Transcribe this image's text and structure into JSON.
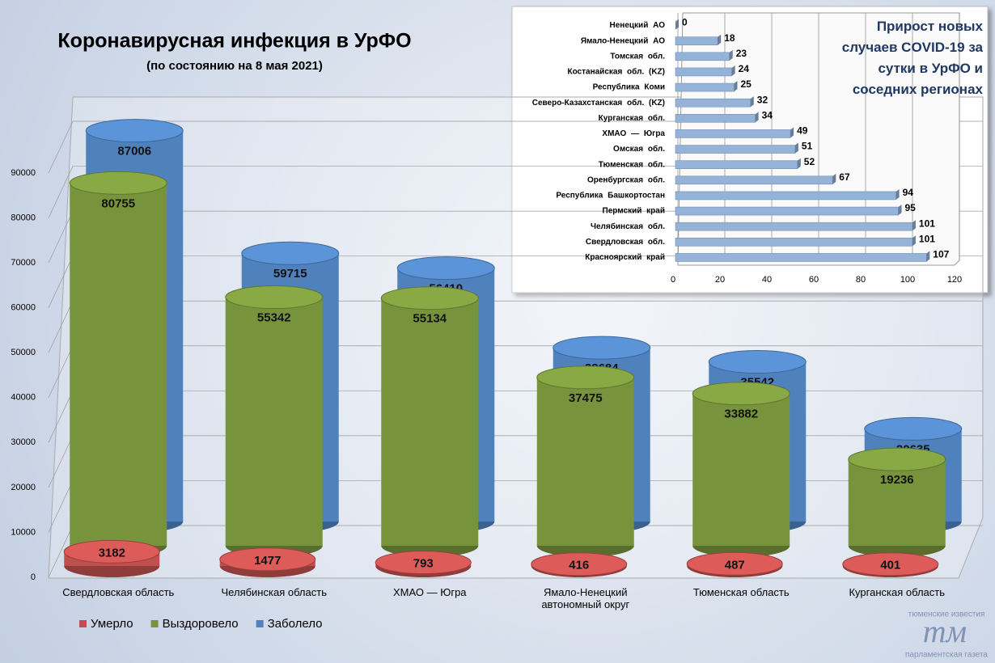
{
  "chart_data": [
    {
      "type": "cylinder-bar",
      "title": "Коронавирусная инфекция в УрФО",
      "subtitle": "(по состоянию на 8 мая 2021)",
      "categories": [
        "Свердловская область",
        "Челябинская область",
        "ХМАО — Югра",
        "Ямало-Ненецкий автономный округ",
        "Тюменская область",
        "Курганская область"
      ],
      "series": [
        {
          "name": "Умерло",
          "color": "#c0504d",
          "values": [
            3182,
            1477,
            793,
            416,
            487,
            401
          ]
        },
        {
          "name": "Выздоровело",
          "color": "#77933c",
          "values": [
            80755,
            55342,
            55134,
            37475,
            33882,
            19236
          ]
        },
        {
          "name": "Заболело",
          "color": "#4f81bd",
          "values": [
            87006,
            59715,
            56410,
            38684,
            35542,
            20635
          ]
        }
      ],
      "ylim": [
        0,
        90000
      ],
      "yticks": [
        0,
        10000,
        20000,
        30000,
        40000,
        50000,
        60000,
        70000,
        80000,
        90000
      ],
      "grid": true,
      "legend": "bottom-left"
    },
    {
      "type": "hbar",
      "title": "Прирост новых случаев COVID-19 за сутки в УрФО и соседних регионах",
      "categories": [
        "Ненецкий АО",
        "Ямало-Ненецкий АО",
        "Томская обл.",
        "Костанайская обл. (KZ)",
        "Республика Коми",
        "Северо-Казахстанская обл. (KZ)",
        "Курганская обл.",
        "ХМАО — Югра",
        "Омская обл.",
        "Тюменская обл.",
        "Оренбургская обл.",
        "Республика Башкортостан",
        "Пермский край",
        "Челябинская обл.",
        "Свердловская обл.",
        "Красноярский край"
      ],
      "values": [
        0,
        18,
        23,
        24,
        25,
        32,
        34,
        49,
        51,
        52,
        67,
        94,
        95,
        101,
        101,
        107
      ],
      "color": "#95b3d7",
      "xlim": [
        0,
        120
      ],
      "xticks": [
        0,
        20,
        40,
        60,
        80,
        100,
        120
      ],
      "grid": true
    }
  ],
  "watermark": {
    "top": "тюменские известия",
    "logo": "тм",
    "bottom": "парламентская газета"
  }
}
